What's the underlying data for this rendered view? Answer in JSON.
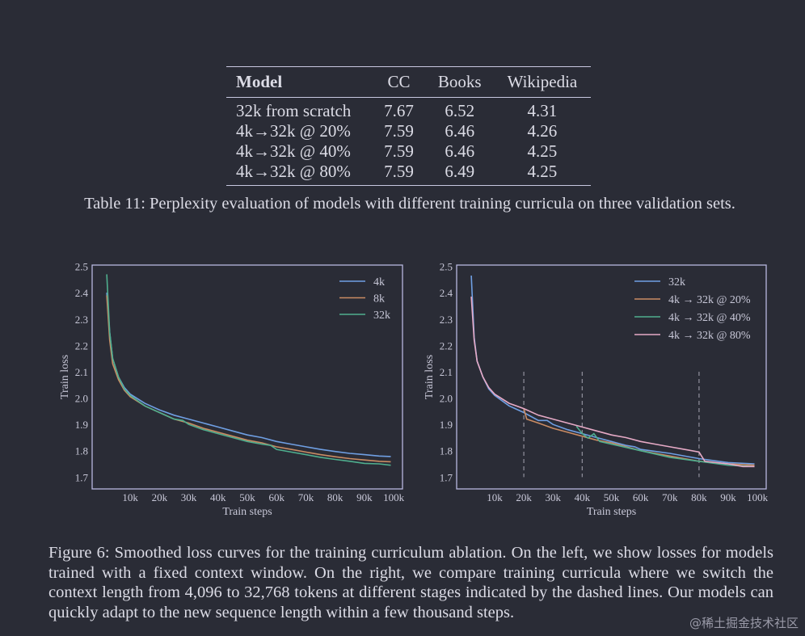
{
  "table": {
    "headers": [
      "Model",
      "CC",
      "Books",
      "Wikipedia"
    ],
    "rows": [
      [
        "32k from scratch",
        "7.67",
        "6.52",
        "4.31"
      ],
      [
        "4k→32k @ 20%",
        "7.59",
        "6.46",
        "4.26"
      ],
      [
        "4k→32k @ 40%",
        "7.59",
        "6.46",
        "4.25"
      ],
      [
        "4k→32k @ 80%",
        "7.59",
        "6.49",
        "4.25"
      ]
    ],
    "caption": "Table 11: Perplexity evaluation of models with different training curricula on three validation sets."
  },
  "chart_data": [
    {
      "type": "line",
      "xlabel": "Train steps",
      "ylabel": "Train loss",
      "xlim": [
        -3,
        103
      ],
      "ylim": [
        1.655,
        2.505
      ],
      "xticks": [
        10,
        20,
        30,
        40,
        50,
        60,
        70,
        80,
        90,
        100
      ],
      "xtick_labels": [
        "10k",
        "20k",
        "30k",
        "40k",
        "50k",
        "60k",
        "70k",
        "80k",
        "90k",
        "100k"
      ],
      "yticks": [
        1.7,
        1.8,
        1.9,
        2.0,
        2.1,
        2.2,
        2.3,
        2.4,
        2.5
      ],
      "ytick_labels": [
        "1.7",
        "1.8",
        "1.9",
        "2.0",
        "2.1",
        "2.2",
        "2.3",
        "2.4",
        "2.5"
      ],
      "legend_position": "top-right",
      "vlines": [],
      "series": [
        {
          "name": "4k",
          "color": "#6f9fe3",
          "x": [
            2,
            3,
            4,
            6,
            8,
            10,
            15,
            20,
            25,
            30,
            35,
            40,
            45,
            50,
            55,
            60,
            65,
            70,
            75,
            80,
            85,
            90,
            95,
            99
          ],
          "y": [
            2.4,
            2.25,
            2.15,
            2.08,
            2.04,
            2.015,
            1.98,
            1.955,
            1.935,
            1.92,
            1.905,
            1.89,
            1.875,
            1.86,
            1.85,
            1.835,
            1.825,
            1.815,
            1.805,
            1.797,
            1.79,
            1.785,
            1.78,
            1.778
          ]
        },
        {
          "name": "8k",
          "color": "#c98b63",
          "x": [
            2,
            3,
            4,
            6,
            8,
            10,
            15,
            20,
            25,
            30,
            35,
            40,
            45,
            50,
            55,
            60,
            65,
            70,
            75,
            80,
            85,
            90,
            95,
            99
          ],
          "y": [
            2.39,
            2.22,
            2.13,
            2.07,
            2.03,
            2.005,
            1.97,
            1.945,
            1.92,
            1.905,
            1.885,
            1.87,
            1.855,
            1.84,
            1.83,
            1.815,
            1.805,
            1.795,
            1.785,
            1.777,
            1.77,
            1.765,
            1.76,
            1.758
          ]
        },
        {
          "name": "32k",
          "color": "#4fae8e",
          "x": [
            2,
            3,
            4,
            6,
            8,
            10,
            15,
            20,
            25,
            28,
            30,
            35,
            40,
            45,
            50,
            55,
            58,
            60,
            65,
            70,
            75,
            80,
            85,
            90,
            95,
            99
          ],
          "y": [
            2.47,
            2.25,
            2.15,
            2.08,
            2.035,
            2.01,
            1.97,
            1.945,
            1.92,
            1.915,
            1.9,
            1.88,
            1.865,
            1.85,
            1.835,
            1.825,
            1.82,
            1.805,
            1.795,
            1.785,
            1.775,
            1.767,
            1.76,
            1.752,
            1.75,
            1.745
          ]
        }
      ]
    },
    {
      "type": "line",
      "xlabel": "Train steps",
      "ylabel": "Train loss",
      "xlim": [
        -3,
        103
      ],
      "ylim": [
        1.655,
        2.505
      ],
      "xticks": [
        10,
        20,
        30,
        40,
        50,
        60,
        70,
        80,
        90,
        100
      ],
      "xtick_labels": [
        "10k",
        "20k",
        "30k",
        "40k",
        "50k",
        "60k",
        "70k",
        "80k",
        "90k",
        "100k"
      ],
      "yticks": [
        1.7,
        1.8,
        1.9,
        2.0,
        2.1,
        2.2,
        2.3,
        2.4,
        2.5
      ],
      "ytick_labels": [
        "1.7",
        "1.8",
        "1.9",
        "2.0",
        "2.1",
        "2.2",
        "2.3",
        "2.4",
        "2.5"
      ],
      "legend_position": "top-right",
      "vlines": [
        20,
        40,
        80
      ],
      "vline_range": [
        1.7,
        2.1
      ],
      "series": [
        {
          "name": "32k",
          "color": "#6f9fe3",
          "x": [
            2,
            3,
            4,
            6,
            8,
            10,
            15,
            20,
            25,
            28,
            30,
            35,
            40,
            45,
            50,
            55,
            58,
            60,
            70,
            80,
            90,
            99
          ],
          "y": [
            2.465,
            2.23,
            2.14,
            2.08,
            2.035,
            2.01,
            1.97,
            1.945,
            1.915,
            1.915,
            1.9,
            1.88,
            1.865,
            1.85,
            1.835,
            1.82,
            1.815,
            1.805,
            1.79,
            1.77,
            1.755,
            1.75
          ]
        },
        {
          "name": "4k → 32k @ 20%",
          "color": "#c98b63",
          "x": [
            20,
            21,
            25,
            30,
            35,
            40,
            45,
            50,
            60,
            70,
            80,
            90,
            99
          ],
          "y": [
            1.96,
            1.92,
            1.905,
            1.885,
            1.87,
            1.855,
            1.84,
            1.83,
            1.8,
            1.78,
            1.76,
            1.75,
            1.745
          ]
        },
        {
          "name": "4k → 32k @ 40%",
          "color": "#4fae8e",
          "x": [
            38,
            40,
            42,
            44,
            46,
            50,
            60,
            70,
            80,
            90,
            99
          ],
          "y": [
            1.893,
            1.865,
            1.848,
            1.865,
            1.835,
            1.825,
            1.8,
            1.775,
            1.76,
            1.745,
            1.74
          ]
        },
        {
          "name": "4k → 32k @ 80%",
          "color": "#e6aac6",
          "x": [
            2,
            3,
            4,
            6,
            8,
            10,
            15,
            20,
            25,
            30,
            35,
            40,
            45,
            50,
            55,
            60,
            65,
            70,
            75,
            80,
            82,
            90,
            95,
            99
          ],
          "y": [
            2.385,
            2.22,
            2.14,
            2.08,
            2.04,
            2.015,
            1.98,
            1.96,
            1.935,
            1.92,
            1.905,
            1.89,
            1.875,
            1.86,
            1.85,
            1.835,
            1.825,
            1.815,
            1.805,
            1.795,
            1.76,
            1.75,
            1.74,
            1.74
          ]
        }
      ]
    }
  ],
  "figure_caption": "Figure 6: Smoothed loss curves for the training curriculum ablation. On the left, we show losses for models trained with a fixed context window. On the right, we compare training curricula where we switch the context length from 4,096 to 32,768 tokens at different stages indicated by the dashed lines. Our models can quickly adapt to the new sequence length within a few thousand steps.",
  "watermark": "@稀土掘金技术社区",
  "colors": {
    "background": "#2a2c36",
    "frame": "#b8b8e0",
    "text": "#dcdce6"
  }
}
